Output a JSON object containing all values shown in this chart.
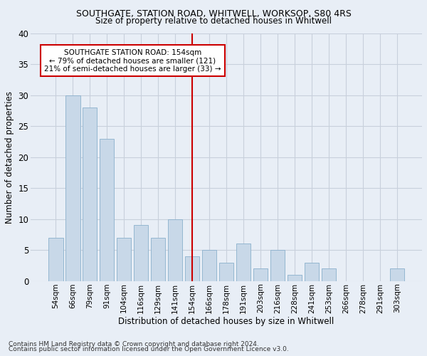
{
  "title_line1": "SOUTHGATE, STATION ROAD, WHITWELL, WORKSOP, S80 4RS",
  "title_line2": "Size of property relative to detached houses in Whitwell",
  "xlabel": "Distribution of detached houses by size in Whitwell",
  "ylabel": "Number of detached properties",
  "categories": [
    "54sqm",
    "66sqm",
    "79sqm",
    "91sqm",
    "104sqm",
    "116sqm",
    "129sqm",
    "141sqm",
    "154sqm",
    "166sqm",
    "178sqm",
    "191sqm",
    "203sqm",
    "216sqm",
    "228sqm",
    "241sqm",
    "253sqm",
    "266sqm",
    "278sqm",
    "291sqm",
    "303sqm"
  ],
  "values": [
    7,
    30,
    28,
    23,
    7,
    9,
    7,
    10,
    4,
    5,
    3,
    6,
    2,
    5,
    1,
    3,
    2,
    0,
    0,
    0,
    2
  ],
  "bar_color": "#c8d8e8",
  "bar_edgecolor": "#8ab0cc",
  "highlight_index": 8,
  "highlight_line_color": "#cc0000",
  "annotation_text": "SOUTHGATE STATION ROAD: 154sqm\n← 79% of detached houses are smaller (121)\n21% of semi-detached houses are larger (33) →",
  "annotation_box_color": "#ffffff",
  "annotation_box_edgecolor": "#cc0000",
  "ylim": [
    0,
    40
  ],
  "yticks": [
    0,
    5,
    10,
    15,
    20,
    25,
    30,
    35,
    40
  ],
  "grid_color": "#c8d0dc",
  "background_color": "#e8eef6",
  "footnote1": "Contains HM Land Registry data © Crown copyright and database right 2024.",
  "footnote2": "Contains public sector information licensed under the Open Government Licence v3.0."
}
